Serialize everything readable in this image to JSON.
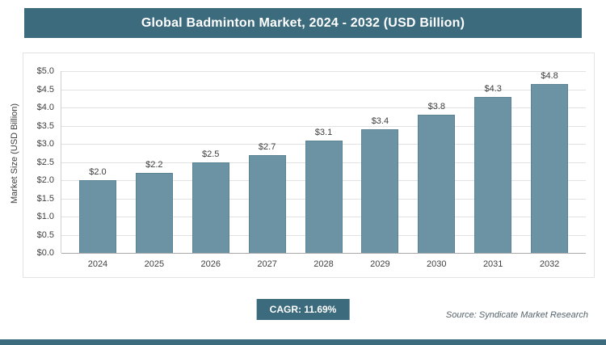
{
  "page": {
    "title": "Global Badminton Market, 2024 - 2032 (USD Billion)",
    "cagr_badge": "CAGR: 11.69%",
    "source": "Source: Syndicate Market Research"
  },
  "colors": {
    "accent": "#3d6b7e",
    "bar_fill": "#6b93a4",
    "bar_border": "#5a8496",
    "grid": "#e2e2e2",
    "axis_text": "#3f3f3f"
  },
  "chart_data": {
    "type": "bar",
    "title": "Global Badminton Market, 2024 - 2032 (USD Billion)",
    "xlabel": "",
    "ylabel": "Market Size (USD Billion)",
    "categories": [
      "2024",
      "2025",
      "2026",
      "2027",
      "2028",
      "2029",
      "2030",
      "2031",
      "2032"
    ],
    "values": [
      2.0,
      2.2,
      2.5,
      2.7,
      3.1,
      3.4,
      3.8,
      4.3,
      4.8
    ],
    "value_labels": [
      "$2.0",
      "$2.2",
      "$2.5",
      "$2.7",
      "$3.1",
      "$3.4",
      "$3.8",
      "$4.3",
      "$4.8"
    ],
    "ylim": [
      0,
      5.0
    ],
    "ytick_step": 0.5,
    "ytick_labels": [
      "$0.0",
      "$0.5",
      "$1.0",
      "$1.5",
      "$2.0",
      "$2.5",
      "$3.0",
      "$3.5",
      "$4.0",
      "$4.5",
      "$5.0"
    ],
    "grid": true,
    "legend": "none",
    "cagr": "11.69%",
    "source": "Syndicate Market Research"
  }
}
